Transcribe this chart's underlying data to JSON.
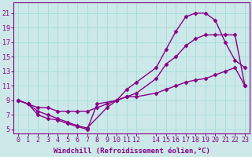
{
  "title": "",
  "xlabel": "Windchill (Refroidissement éolien,°C)",
  "ylabel": "",
  "bg_color": "#cce8e8",
  "line_color": "#880088",
  "grid_color": "#aadddd",
  "xlim": [
    -0.5,
    23.5
  ],
  "ylim": [
    4.5,
    22.5
  ],
  "xticks": [
    0,
    1,
    2,
    3,
    4,
    5,
    6,
    7,
    8,
    9,
    10,
    11,
    12,
    14,
    15,
    16,
    17,
    18,
    19,
    20,
    21,
    22,
    23
  ],
  "yticks": [
    5,
    7,
    9,
    11,
    13,
    15,
    17,
    19,
    21
  ],
  "line1_x": [
    0,
    1,
    2,
    3,
    4,
    5,
    6,
    7,
    8,
    10,
    11,
    12,
    14,
    15,
    16,
    17,
    18,
    19,
    20,
    21,
    22,
    23
  ],
  "line1_y": [
    9,
    8.5,
    7,
    6.5,
    6.3,
    5.8,
    5.4,
    5,
    8.5,
    9,
    10.5,
    11.5,
    13.5,
    16,
    18.5,
    20.5,
    21,
    21,
    20,
    17,
    14.5,
    13.5
  ],
  "line2_x": [
    0,
    1,
    2,
    3,
    4,
    5,
    6,
    7,
    9,
    10,
    11,
    12,
    14,
    15,
    16,
    17,
    18,
    19,
    20,
    21,
    22,
    23
  ],
  "line2_y": [
    9,
    8.5,
    7.5,
    7,
    6.5,
    6,
    5.5,
    5.2,
    8,
    9,
    9.5,
    10,
    12,
    14,
    15,
    16.5,
    17.5,
    18,
    18,
    18,
    18,
    11
  ],
  "line3_x": [
    0,
    1,
    2,
    3,
    4,
    5,
    6,
    7,
    8,
    9,
    10,
    11,
    12,
    14,
    15,
    16,
    17,
    18,
    19,
    20,
    21,
    22,
    23
  ],
  "line3_y": [
    9,
    8.5,
    8,
    8,
    7.5,
    7.5,
    7.5,
    7.5,
    8,
    8.5,
    9,
    9.5,
    9.5,
    10,
    10.5,
    11,
    11.5,
    11.8,
    12,
    12.5,
    13,
    13.5,
    11
  ],
  "marker": "D",
  "markersize": 2.5,
  "linewidth": 1.0,
  "xlabel_fontsize": 6.5,
  "tick_fontsize": 6.0
}
